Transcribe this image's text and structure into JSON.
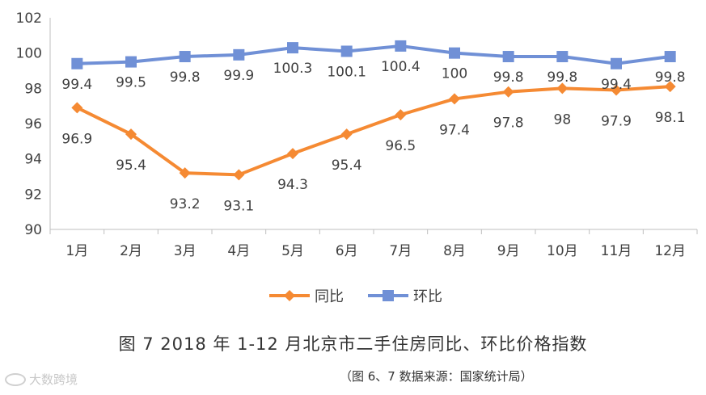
{
  "chart_data": {
    "type": "line",
    "categories": [
      "1月",
      "2月",
      "3月",
      "4月",
      "5月",
      "6月",
      "7月",
      "8月",
      "9月",
      "10月",
      "11月",
      "12月"
    ],
    "ylim": [
      90,
      102
    ],
    "yticks": [
      90,
      92,
      94,
      96,
      98,
      100,
      102
    ],
    "grid": false,
    "legend_position": "bottom",
    "series": [
      {
        "name": "同比",
        "color": "#F58A33",
        "marker": "diamond",
        "values": [
          96.9,
          95.4,
          93.2,
          93.1,
          94.3,
          95.4,
          96.5,
          97.4,
          97.8,
          98,
          97.9,
          98.1
        ],
        "labels": [
          "96.9",
          "95.4",
          "93.2",
          "93.1",
          "94.3",
          "95.4",
          "96.5",
          "97.4",
          "97.8",
          "98",
          "97.9",
          "98.1"
        ]
      },
      {
        "name": "环比",
        "color": "#7090D6",
        "marker": "square",
        "values": [
          99.4,
          99.5,
          99.8,
          99.9,
          100.3,
          100.1,
          100.4,
          100,
          99.8,
          99.8,
          99.4,
          99.8
        ],
        "labels": [
          "99.4",
          "99.5",
          "99.8",
          "99.9",
          "100.3",
          "100.1",
          "100.4",
          "100",
          "99.8",
          "99.8",
          "99.4",
          "99.8"
        ]
      }
    ]
  },
  "caption": "图 7   2018 年 1-12 月北京市二手住房同比、环比价格指数",
  "source": "（图 6、7 数据来源：国家统计局）",
  "watermark": "大数跨境"
}
